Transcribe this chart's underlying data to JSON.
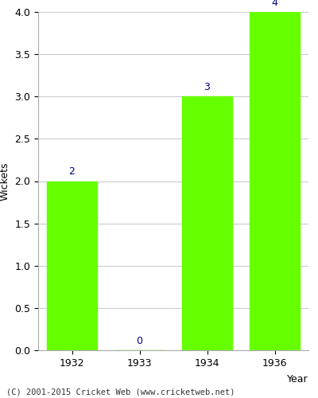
{
  "years": [
    "1932",
    "1933",
    "1934",
    "1936"
  ],
  "values": [
    2,
    0,
    3,
    4
  ],
  "bar_color": "#66ff00",
  "bar_width": 0.75,
  "ylim": [
    0,
    4.0
  ],
  "ylabel": "Wickets",
  "xlabel": "Year",
  "label_color": "#000080",
  "label_fontsize": 9,
  "tick_fontsize": 9,
  "axis_label_fontsize": 9,
  "grid_color": "#cccccc",
  "background_color": "#ffffff",
  "footer": "(C) 2001-2015 Cricket Web (www.cricketweb.net)"
}
